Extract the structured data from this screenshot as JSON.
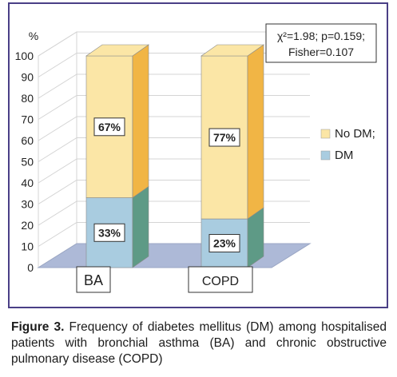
{
  "chart_data": {
    "type": "bar",
    "stacked": true,
    "categories": [
      "BA",
      "COPD"
    ],
    "series": [
      {
        "name": "DM",
        "values": [
          33,
          23
        ],
        "labels": [
          "33%",
          "23%"
        ],
        "color": "#a9cce0",
        "side_color": "#5e9a86"
      },
      {
        "name": "No DM;",
        "values": [
          67,
          77
        ],
        "labels": [
          "67%",
          "77%"
        ],
        "color": "#fbe6a6",
        "side_color": "#f1b545"
      }
    ],
    "y_unit": "%",
    "y_ticks": [
      0,
      10,
      20,
      30,
      40,
      50,
      60,
      70,
      80,
      90,
      100
    ],
    "ylim": [
      0,
      100
    ],
    "grid": true,
    "legend_position": "right",
    "annotation": [
      "χ²=1.98; p=0.159;",
      "Fisher=0.107"
    ],
    "colors": {
      "frame": "#4a3f86",
      "floor": "#adb9d7",
      "wall_line": "#d4d4d4"
    }
  },
  "caption": {
    "label": "Figure 3.",
    "text": "Frequency of diabetes mellitus (DM) among hospitalised patients with bronchial asthma (BA) and chronic obstructive pulmonary disease (COPD)"
  }
}
